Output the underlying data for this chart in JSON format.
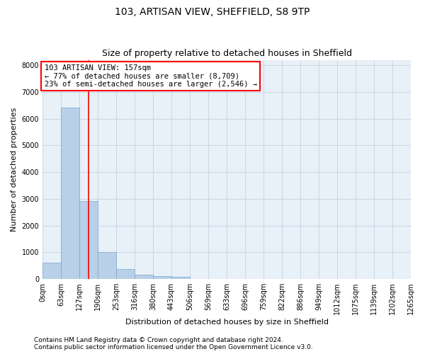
{
  "title": "103, ARTISAN VIEW, SHEFFIELD, S8 9TP",
  "subtitle": "Size of property relative to detached houses in Sheffield",
  "xlabel": "Distribution of detached houses by size in Sheffield",
  "ylabel": "Number of detached properties",
  "bin_labels": [
    "0sqm",
    "63sqm",
    "127sqm",
    "190sqm",
    "253sqm",
    "316sqm",
    "380sqm",
    "443sqm",
    "506sqm",
    "569sqm",
    "633sqm",
    "696sqm",
    "759sqm",
    "822sqm",
    "886sqm",
    "949sqm",
    "1012sqm",
    "1075sqm",
    "1139sqm",
    "1202sqm",
    "1265sqm"
  ],
  "bar_values": [
    620,
    6420,
    2920,
    1010,
    380,
    165,
    105,
    85,
    0,
    0,
    0,
    0,
    0,
    0,
    0,
    0,
    0,
    0,
    0,
    0
  ],
  "bar_color": "#b8d0e8",
  "bar_edge_color": "#7aa8cc",
  "property_line_x": 157,
  "bin_width": 63,
  "annotation_line1": "103 ARTISAN VIEW: 157sqm",
  "annotation_line2": "← 77% of detached houses are smaller (8,709)",
  "annotation_line3": "23% of semi-detached houses are larger (2,546) →",
  "annotation_box_color": "white",
  "annotation_box_edge_color": "red",
  "vline_color": "red",
  "ylim": [
    0,
    8200
  ],
  "yticks": [
    0,
    1000,
    2000,
    3000,
    4000,
    5000,
    6000,
    7000,
    8000
  ],
  "grid_color": "#c8d8e8",
  "background_color": "#e8f0f8",
  "footer_line1": "Contains HM Land Registry data © Crown copyright and database right 2024.",
  "footer_line2": "Contains public sector information licensed under the Open Government Licence v3.0.",
  "title_fontsize": 10,
  "subtitle_fontsize": 9,
  "axis_label_fontsize": 8,
  "tick_fontsize": 7,
  "annotation_fontsize": 7.5,
  "footer_fontsize": 6.5
}
